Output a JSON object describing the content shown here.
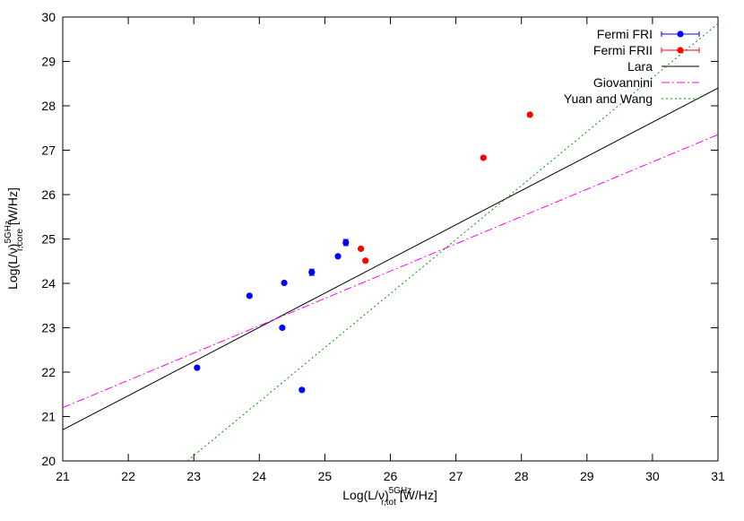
{
  "chart_data": {
    "type": "scatter",
    "title": "",
    "xlabel": {
      "main": "Log(L/ν)",
      "sup": "5GHz",
      "sub": "r,tot",
      "unit": " [W/Hz]"
    },
    "ylabel": {
      "main": "Log(L/ν)",
      "sup": "5GHz",
      "sub": "r,core",
      "unit": " [W/Hz]"
    },
    "xlim": [
      21,
      31
    ],
    "ylim": [
      20,
      30
    ],
    "xticks": [
      "21",
      "22",
      "23",
      "24",
      "25",
      "26",
      "27",
      "28",
      "29",
      "30",
      "31"
    ],
    "yticks": [
      "20",
      "21",
      "22",
      "23",
      "24",
      "25",
      "26",
      "27",
      "28",
      "29",
      "30"
    ],
    "grid": false,
    "legend_position": "top-right",
    "series": [
      {
        "name": "Fermi FRI",
        "kind": "points-errorbars",
        "color": "#0000ff",
        "points": [
          {
            "x": 23.05,
            "y": 22.1,
            "yerr": 0.03
          },
          {
            "x": 23.85,
            "y": 23.72,
            "yerr": 0.03
          },
          {
            "x": 24.35,
            "y": 23.0,
            "yerr": 0.03
          },
          {
            "x": 24.38,
            "y": 24.01,
            "yerr": 0.03
          },
          {
            "x": 24.65,
            "y": 21.6,
            "yerr": 0.03
          },
          {
            "x": 24.8,
            "y": 24.25,
            "yerr": 0.07
          },
          {
            "x": 25.2,
            "y": 24.61,
            "yerr": 0.03
          },
          {
            "x": 25.32,
            "y": 24.92,
            "yerr": 0.07
          }
        ]
      },
      {
        "name": "Fermi FRII",
        "kind": "points-errorbars",
        "color": "#ff0000",
        "points": [
          {
            "x": 25.55,
            "y": 24.78,
            "yerr": 0.03
          },
          {
            "x": 25.62,
            "y": 24.51,
            "yerr": 0.03
          },
          {
            "x": 27.42,
            "y": 26.83,
            "yerr": 0.03
          },
          {
            "x": 28.13,
            "y": 27.8,
            "yerr": 0.03
          }
        ]
      },
      {
        "name": "Lara",
        "kind": "line",
        "color": "#000000",
        "dash": "solid",
        "points": [
          {
            "x": 21,
            "y": 20.7
          },
          {
            "x": 31,
            "y": 28.4
          }
        ]
      },
      {
        "name": "Giovannini",
        "kind": "line",
        "color": "#ff00ff",
        "dash": "dash-dot",
        "points": [
          {
            "x": 21,
            "y": 21.2
          },
          {
            "x": 31,
            "y": 27.35
          }
        ]
      },
      {
        "name": "Yuan and Wang",
        "kind": "line",
        "color": "#009900",
        "dash": "dotted",
        "points": [
          {
            "x": 22.9,
            "y": 20.0
          },
          {
            "x": 31,
            "y": 29.85
          }
        ]
      }
    ]
  }
}
